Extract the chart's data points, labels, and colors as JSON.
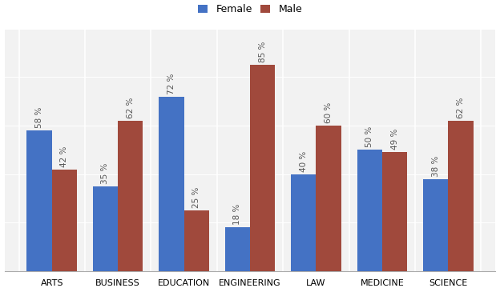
{
  "categories": [
    "ARTS",
    "BUSINESS",
    "EDUCATION",
    "ENGINEERING",
    "LAW",
    "MEDICINE",
    "SCIENCE"
  ],
  "female": [
    58,
    35,
    72,
    18,
    40,
    50,
    38
  ],
  "male": [
    42,
    62,
    25,
    85,
    60,
    49,
    62
  ],
  "female_color": "#4472C4",
  "male_color": "#A0493C",
  "legend_labels": [
    "Female",
    "Male"
  ],
  "ylim": [
    0,
    100
  ],
  "bar_width": 0.38,
  "figsize": [
    6.24,
    3.65
  ],
  "dpi": 100,
  "background_color": "#FFFFFF",
  "plot_bg_color": "#F2F2F2",
  "grid_color": "#FFFFFF",
  "label_fontsize": 7.5,
  "tick_fontsize": 8,
  "legend_fontsize": 9
}
